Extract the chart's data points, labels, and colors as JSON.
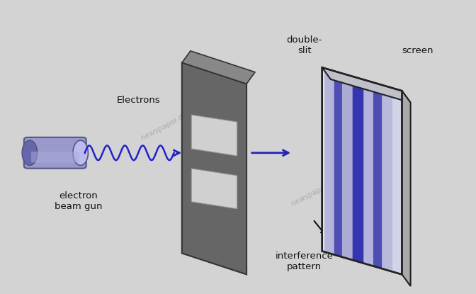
{
  "background_color": "#d3d3d3",
  "fig_width": 6.72,
  "fig_height": 4.15,
  "dpi": 100,
  "gun_color": "#9999cc",
  "gun_light": "#bbbbee",
  "gun_dark": "#6666aa",
  "gun_outline": "#555588",
  "wave_color": "#2222cc",
  "arrow_color": "#2222bb",
  "slit_color": "#666666",
  "slit_edge": "#333333",
  "slit_light": "#bbbbbb",
  "screen_face": "#e8e8f0",
  "screen_edge": "#222222",
  "screen_side": "#c8c8c8",
  "stripe_dark": "#3333aa",
  "stripe_mid": "#8888cc",
  "stripe_light": "#ccccee",
  "text_color": "#111111",
  "label_electrons": "Electrons",
  "label_gun": "electron\nbeam gun",
  "label_slit": "double-\nslit",
  "label_screen": "screen",
  "label_interference": "interference\npattern"
}
